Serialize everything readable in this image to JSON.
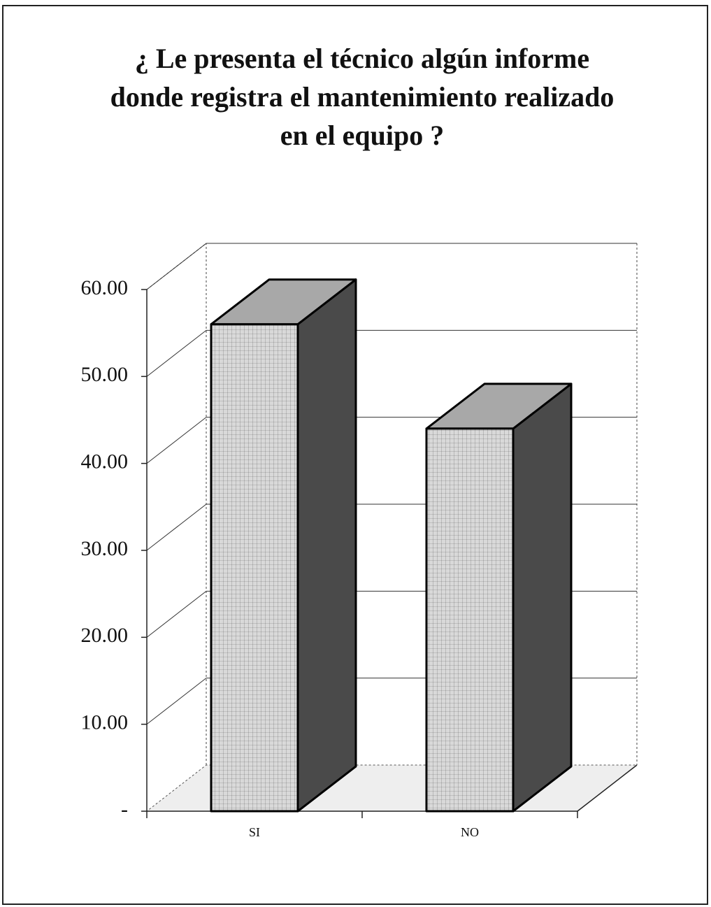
{
  "chart_data": {
    "type": "bar3d",
    "title": [
      "¿ Le presenta el técnico algún informe",
      "donde registra el mantenimiento realizado",
      "en el equipo ?"
    ],
    "categories": [
      "SI",
      "NO"
    ],
    "values": [
      56,
      44
    ],
    "ylim": [
      0,
      60
    ],
    "yticks": [
      {
        "value": 0,
        "label": "-"
      },
      {
        "value": 10,
        "label": "10.00"
      },
      {
        "value": 20,
        "label": "20.00"
      },
      {
        "value": 30,
        "label": "30.00"
      },
      {
        "value": 40,
        "label": "40.00"
      },
      {
        "value": 50,
        "label": "50.00"
      },
      {
        "value": 60,
        "label": "60.00"
      }
    ],
    "grid": true,
    "colors": {
      "front": "#d9d9d9",
      "side": "#4a4a4a",
      "top": "#a8a8a8"
    }
  }
}
